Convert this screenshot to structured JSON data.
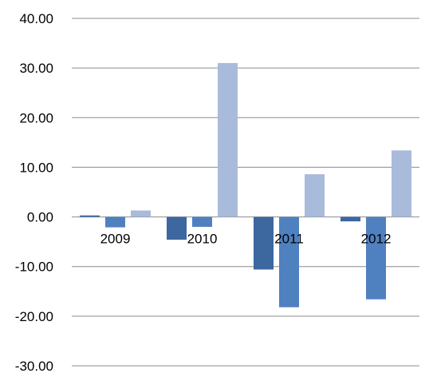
{
  "chart_data": {
    "type": "bar",
    "categories": [
      "2009",
      "2010",
      "2011",
      "2012"
    ],
    "series": [
      {
        "color": "#3d679f",
        "values": [
          0.3,
          -4.6,
          -10.6,
          -0.9
        ]
      },
      {
        "color": "#4f81c0",
        "values": [
          -2.1,
          -2.0,
          -18.2,
          -16.6
        ]
      },
      {
        "color": "#a9bbda",
        "values": [
          1.3,
          31.0,
          8.6,
          13.4
        ]
      }
    ],
    "yticks": [
      "40.00",
      "30.00",
      "20.00",
      "10.00",
      "0.00",
      "-10.00",
      "-20.00",
      "-30.00"
    ],
    "ylim": [
      -30,
      40
    ],
    "grid": true,
    "legend": "none",
    "title": "",
    "xlabel": "",
    "ylabel": ""
  }
}
